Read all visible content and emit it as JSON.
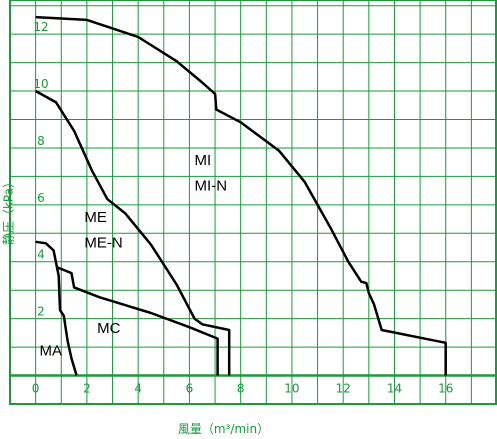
{
  "chart_data": {
    "type": "line",
    "xlabel": "風量（m³/min）",
    "ylabel": "静圧（kPa）",
    "xlim": [
      -1,
      18
    ],
    "ylim": [
      -1,
      13.2
    ],
    "x_ticks": [
      0,
      2,
      4,
      6,
      8,
      10,
      12,
      14,
      16
    ],
    "y_ticks": [
      2,
      4,
      6,
      8,
      10,
      12
    ],
    "x_tick_labels": [
      "0",
      "2",
      "4",
      "6",
      "8",
      "10",
      "12",
      "14",
      "16"
    ],
    "y_tick_labels": [
      "2",
      "4",
      "6",
      "8",
      "10",
      "12"
    ],
    "grid": true,
    "colors": {
      "grid": "#1a9a3a",
      "axis": "#1a9a3a",
      "text": "#1a9a3a",
      "curve": "#000000",
      "background": "#ffffff"
    },
    "series": [
      {
        "labels": [
          "MI",
          "MI-N"
        ],
        "points": [
          [
            0,
            12.6
          ],
          [
            2,
            12.5
          ],
          [
            4,
            11.9
          ],
          [
            5.5,
            11.05
          ],
          [
            6.5,
            10.3
          ],
          [
            7.0,
            9.9
          ],
          [
            7.05,
            9.35
          ],
          [
            8.0,
            8.9
          ],
          [
            9.5,
            7.9
          ],
          [
            10.5,
            6.8
          ],
          [
            11.5,
            5.2
          ],
          [
            12.2,
            4.0
          ],
          [
            12.7,
            3.3
          ],
          [
            12.9,
            3.25
          ],
          [
            13.0,
            2.9
          ],
          [
            13.2,
            2.5
          ],
          [
            13.5,
            1.6
          ],
          [
            16.0,
            1.15
          ],
          [
            16.0,
            0
          ]
        ]
      },
      {
        "labels": [
          "ME",
          "ME-N"
        ],
        "points": [
          [
            0,
            10.0
          ],
          [
            0.8,
            9.6
          ],
          [
            1.5,
            8.6
          ],
          [
            2.2,
            7.2
          ],
          [
            2.8,
            6.2
          ],
          [
            3.5,
            5.7
          ],
          [
            4.5,
            4.6
          ],
          [
            5.5,
            3.2
          ],
          [
            6.2,
            2.0
          ],
          [
            6.5,
            1.8
          ],
          [
            7.55,
            1.6
          ],
          [
            7.55,
            0
          ]
        ]
      },
      {
        "labels": [
          "MC"
        ],
        "points": [
          [
            0.85,
            3.8
          ],
          [
            1.4,
            3.6
          ],
          [
            1.5,
            3.1
          ],
          [
            2.5,
            2.75
          ],
          [
            4.5,
            2.2
          ],
          [
            6.0,
            1.7
          ],
          [
            7.1,
            1.3
          ],
          [
            7.1,
            0
          ]
        ]
      },
      {
        "labels": [
          "MA"
        ],
        "points": [
          [
            0,
            4.7
          ],
          [
            0.4,
            4.65
          ],
          [
            0.7,
            4.4
          ],
          [
            0.9,
            3.5
          ],
          [
            0.95,
            2.3
          ],
          [
            1.1,
            2.1
          ],
          [
            1.25,
            1.2
          ],
          [
            1.4,
            0.6
          ],
          [
            1.6,
            0
          ]
        ]
      }
    ]
  }
}
